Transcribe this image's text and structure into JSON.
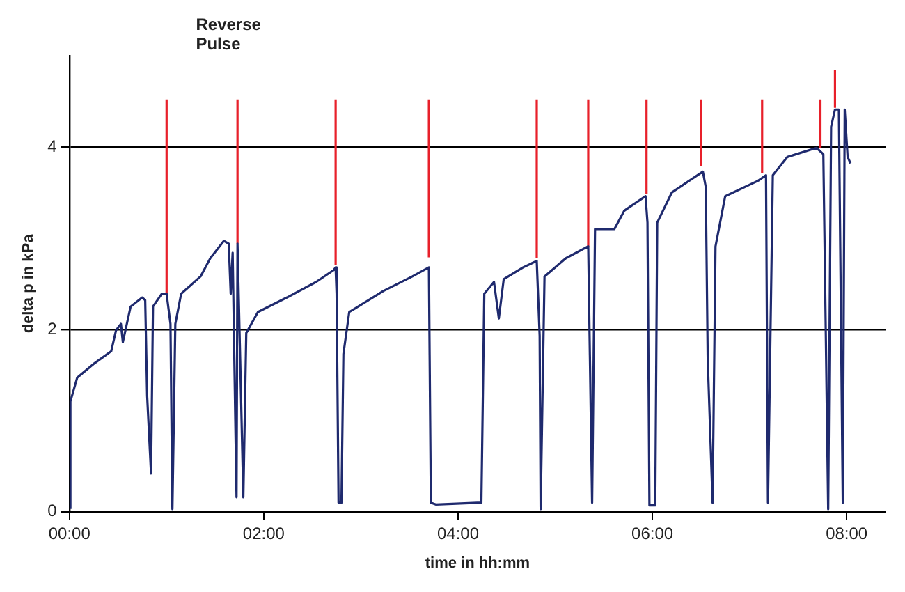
{
  "chart_data": {
    "type": "line",
    "xlabel": "time in hh:mm",
    "ylabel": "delta p in kPa",
    "xlim": [
      0,
      8.4
    ],
    "ylim": [
      0,
      5
    ],
    "xticks": [
      {
        "value": 0,
        "label": "00:00"
      },
      {
        "value": 2,
        "label": "02:00"
      },
      {
        "value": 4,
        "label": "04:00"
      },
      {
        "value": 6,
        "label": "06:00"
      },
      {
        "value": 8,
        "label": "08:00"
      }
    ],
    "yticks": [
      0,
      2,
      4
    ],
    "grid": "y",
    "legend": false,
    "marker": "none",
    "line_style": "solid",
    "annotations": [
      "Reverse Pulse"
    ],
    "series": [
      {
        "color": "#1f2a6e",
        "x": [
          0.01,
          0.01,
          0.08,
          0.26,
          0.43,
          0.48,
          0.53,
          0.55,
          0.63,
          0.75,
          0.78,
          0.8,
          0.84,
          0.86,
          0.95,
          1.0,
          1.04,
          1.06,
          1.09,
          1.15,
          1.35,
          1.45,
          1.59,
          1.64,
          1.66,
          1.68,
          1.72,
          1.73,
          1.79,
          1.82,
          1.94,
          2.24,
          2.54,
          2.72,
          2.74,
          2.75,
          2.77,
          2.8,
          2.82,
          2.88,
          3.23,
          3.53,
          3.7,
          3.72,
          3.77,
          4.24,
          4.27,
          4.37,
          4.42,
          4.47,
          4.67,
          4.81,
          4.84,
          4.85,
          4.89,
          5.11,
          5.34,
          5.38,
          5.41,
          5.61,
          5.71,
          5.93,
          5.95,
          5.97,
          6.03,
          6.05,
          6.2,
          6.52,
          6.55,
          6.57,
          6.62,
          6.65,
          6.75,
          7.09,
          7.17,
          7.19,
          7.24,
          7.39,
          7.69,
          7.76,
          7.81,
          7.84,
          7.88,
          7.92,
          7.96,
          7.98,
          8.01,
          8.04
        ],
        "values": [
          0.03,
          1.21,
          1.47,
          1.63,
          1.76,
          1.99,
          2.06,
          1.86,
          2.25,
          2.35,
          2.32,
          1.27,
          0.42,
          2.25,
          2.39,
          2.39,
          2.06,
          0.03,
          2.06,
          2.39,
          2.58,
          2.78,
          2.97,
          2.94,
          2.39,
          2.84,
          0.16,
          2.94,
          0.16,
          1.96,
          2.19,
          2.35,
          2.52,
          2.65,
          2.68,
          2.39,
          0.1,
          0.1,
          1.73,
          2.19,
          2.42,
          2.58,
          2.68,
          0.1,
          0.08,
          0.1,
          2.39,
          2.52,
          2.12,
          2.55,
          2.68,
          2.75,
          1.93,
          0.03,
          2.58,
          2.78,
          2.91,
          0.1,
          3.1,
          3.1,
          3.3,
          3.46,
          3.17,
          0.07,
          0.07,
          3.17,
          3.5,
          3.73,
          3.56,
          1.67,
          0.1,
          2.91,
          3.46,
          3.63,
          3.69,
          0.1,
          3.69,
          3.89,
          3.99,
          3.92,
          0.03,
          4.22,
          4.41,
          4.41,
          0.1,
          4.41,
          3.89,
          3.82
        ]
      },
      {
        "color": "#e8202a",
        "x": [
          1.0,
          1.0,
          null,
          1.73,
          1.73,
          null,
          2.74,
          2.74,
          null,
          3.7,
          3.7,
          null,
          4.81,
          4.81,
          null,
          5.34,
          5.34,
          null,
          5.94,
          5.94,
          null,
          6.5,
          6.5,
          null,
          7.13,
          7.13,
          null,
          7.73,
          7.73,
          null,
          7.88,
          7.88
        ],
        "values": [
          2.38,
          4.52,
          null,
          2.94,
          4.52,
          null,
          2.71,
          4.52,
          null,
          2.79,
          4.52,
          null,
          2.78,
          4.52,
          null,
          2.91,
          4.52,
          null,
          3.48,
          4.52,
          null,
          3.79,
          4.52,
          null,
          3.71,
          4.52,
          null,
          3.99,
          4.52,
          null,
          4.43,
          4.84
        ]
      }
    ]
  }
}
